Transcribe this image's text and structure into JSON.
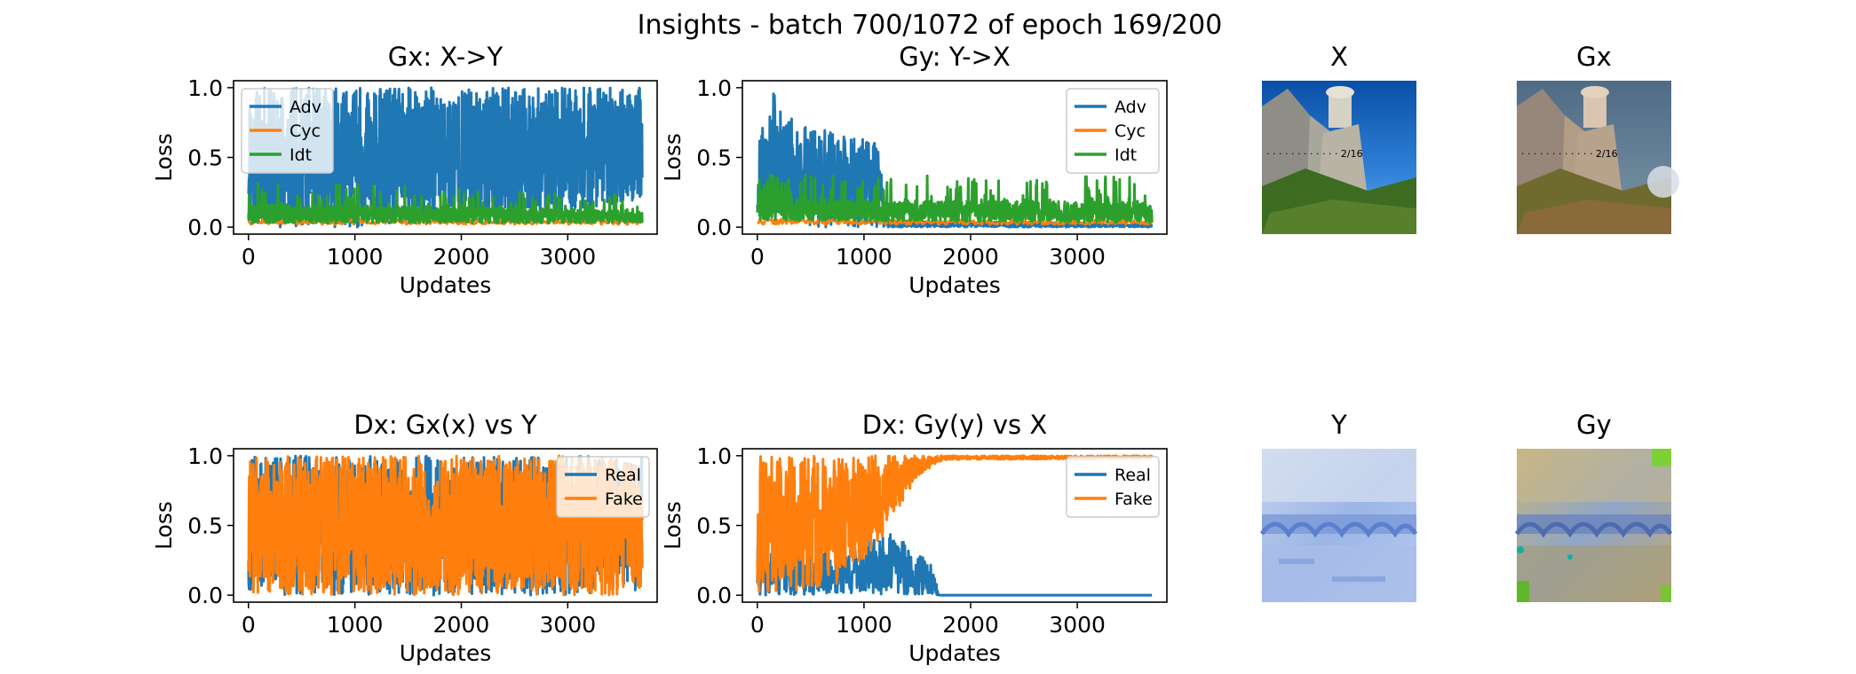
{
  "figure": {
    "suptitle": "Insights - batch 700/1072 of epoch 169/200"
  },
  "images": [
    {
      "title": "X",
      "name": "image-x",
      "scene": "cliffs-sky"
    },
    {
      "title": "Gx",
      "name": "image-gx",
      "scene": "cliffs-painted"
    },
    {
      "title": "Y",
      "name": "image-y",
      "scene": "monet-bridge"
    },
    {
      "title": "Gy",
      "name": "image-gy",
      "scene": "monet-bridge-generated"
    }
  ],
  "chart_data": [
    {
      "type": "line",
      "name": "gx-loss",
      "title": "Gx: X->Y",
      "xlabel": "Updates",
      "ylabel": "Loss",
      "xlim": [
        -140,
        3840
      ],
      "ylim": [
        -0.05,
        1.05
      ],
      "xticks": [
        0,
        1000,
        2000,
        3000
      ],
      "yticks": [
        0.0,
        0.5,
        1.0
      ],
      "grid": false,
      "legend": "upper-left",
      "x_range": [
        0,
        3700
      ],
      "series": [
        {
          "name": "Adv",
          "color": "#1f77b4",
          "description": "oscillating",
          "low": 0.0,
          "high": 1.0,
          "points": 1500,
          "seed": 11,
          "envelope": [
            [
              0,
              0.0,
              1.0
            ],
            [
              1000,
              0.0,
              1.0
            ],
            [
              2500,
              0.05,
              1.0
            ],
            [
              3700,
              0.2,
              1.0
            ]
          ]
        },
        {
          "name": "Cyc",
          "color": "#ff7f0e",
          "points": 300,
          "seed": 12,
          "envelope": [
            [
              0,
              0.02,
              0.06
            ],
            [
              3700,
              0.02,
              0.05
            ]
          ]
        },
        {
          "name": "Idt",
          "color": "#2ca02c",
          "points": 1200,
          "seed": 13,
          "spikes": 0.08,
          "envelope": [
            [
              0,
              0.03,
              0.17
            ],
            [
              3700,
              0.03,
              0.12
            ]
          ]
        }
      ]
    },
    {
      "type": "line",
      "name": "gy-loss",
      "title": "Gy: Y->X",
      "xlabel": "Updates",
      "ylabel": "Loss",
      "xlim": [
        -140,
        3840
      ],
      "ylim": [
        -0.05,
        1.05
      ],
      "xticks": [
        0,
        1000,
        2000,
        3000
      ],
      "yticks": [
        0.0,
        0.5,
        1.0
      ],
      "grid": false,
      "legend": "upper-right",
      "x_range": [
        0,
        3700
      ],
      "series": [
        {
          "name": "Adv",
          "color": "#1f77b4",
          "points": 1200,
          "seed": 21,
          "envelope": [
            [
              0,
              0.0,
              0.65
            ],
            [
              150,
              0.1,
              1.0
            ],
            [
              250,
              0.05,
              0.8
            ],
            [
              600,
              0.0,
              0.7
            ],
            [
              1150,
              0.0,
              0.6
            ],
            [
              1200,
              0.0,
              0.05
            ],
            [
              3700,
              0.0,
              0.02
            ]
          ]
        },
        {
          "name": "Cyc",
          "color": "#ff7f0e",
          "points": 300,
          "seed": 22,
          "envelope": [
            [
              0,
              0.02,
              0.06
            ],
            [
              3700,
              0.02,
              0.05
            ]
          ]
        },
        {
          "name": "Idt",
          "color": "#2ca02c",
          "points": 1200,
          "seed": 23,
          "spikes": 0.1,
          "envelope": [
            [
              0,
              0.05,
              0.2
            ],
            [
              3700,
              0.03,
              0.18
            ]
          ]
        }
      ]
    },
    {
      "type": "line",
      "name": "dx-gx-vs-y",
      "title": "Dx: Gx(x) vs Y",
      "xlabel": "Updates",
      "ylabel": "Loss",
      "xlim": [
        -140,
        3840
      ],
      "ylim": [
        -0.05,
        1.05
      ],
      "xticks": [
        0,
        1000,
        2000,
        3000
      ],
      "yticks": [
        0.0,
        0.5,
        1.0
      ],
      "grid": false,
      "legend": "upper-right",
      "x_range": [
        0,
        3700
      ],
      "series": [
        {
          "name": "Real",
          "color": "#1f77b4",
          "points": 1300,
          "seed": 31,
          "envelope": [
            [
              0,
              0.0,
              1.0
            ],
            [
              3700,
              0.0,
              1.0
            ]
          ]
        },
        {
          "name": "Fake",
          "color": "#ff7f0e",
          "points": 1500,
          "seed": 32,
          "envelope": [
            [
              0,
              0.0,
              1.0
            ],
            [
              3700,
              0.0,
              1.0
            ]
          ]
        }
      ]
    },
    {
      "type": "line",
      "name": "dx-gy-vs-x",
      "title": "Dx: Gy(y) vs X",
      "xlabel": "Updates",
      "ylabel": "Loss",
      "xlim": [
        -140,
        3840
      ],
      "ylim": [
        -0.05,
        1.05
      ],
      "xticks": [
        0,
        1000,
        2000,
        3000
      ],
      "yticks": [
        0.0,
        0.5,
        1.0
      ],
      "grid": false,
      "legend": "upper-right",
      "x_range": [
        0,
        3700
      ],
      "series": [
        {
          "name": "Real",
          "color": "#1f77b4",
          "points": 900,
          "seed": 41,
          "envelope": [
            [
              0,
              0.0,
              0.35
            ],
            [
              700,
              0.0,
              0.3
            ],
            [
              1300,
              0.0,
              0.45
            ],
            [
              1650,
              0.0,
              0.2
            ],
            [
              1700,
              0.0,
              0.0
            ],
            [
              3700,
              0.0,
              0.0
            ]
          ]
        },
        {
          "name": "Fake",
          "color": "#ff7f0e",
          "points": 1100,
          "seed": 42,
          "envelope": [
            [
              0,
              0.0,
              1.0
            ],
            [
              700,
              0.05,
              1.0
            ],
            [
              1100,
              0.3,
              1.0
            ],
            [
              1500,
              0.85,
              1.0
            ],
            [
              1750,
              0.97,
              1.0
            ],
            [
              3700,
              0.98,
              1.0
            ]
          ]
        }
      ]
    }
  ]
}
